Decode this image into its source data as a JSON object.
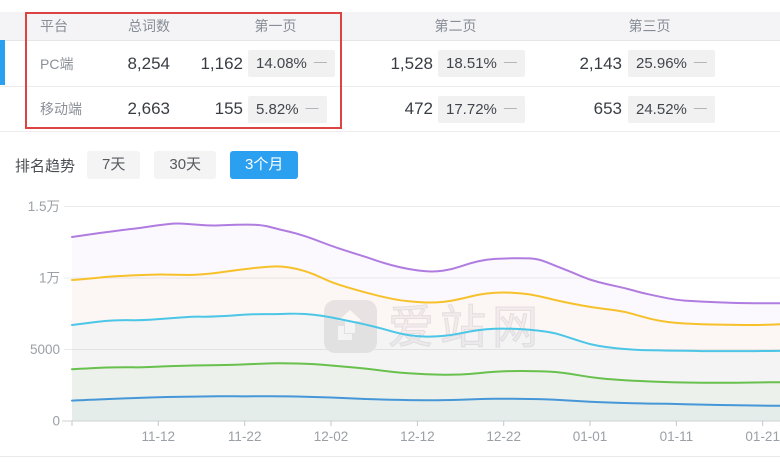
{
  "table": {
    "headers": {
      "platform": "平台",
      "total": "总词数",
      "page1": "第一页",
      "page2": "第二页",
      "page3": "第三页"
    },
    "rows": [
      {
        "platform": "PC端",
        "total": "8,254",
        "page1_count": "1,162",
        "page1_pct": "14.08%",
        "page1_trend": "—",
        "page2_count": "1,528",
        "page2_pct": "18.51%",
        "page2_trend": "—",
        "page3_count": "2,143",
        "page3_pct": "25.96%",
        "page3_trend": "—"
      },
      {
        "platform": "移动端",
        "total": "2,663",
        "page1_count": "155",
        "page1_pct": "5.82%",
        "page1_trend": "—",
        "page2_count": "472",
        "page2_pct": "17.72%",
        "page2_trend": "—",
        "page3_count": "653",
        "page3_pct": "24.52%",
        "page3_trend": "—"
      }
    ],
    "highlight_color": "#dc4343",
    "accent_color": "#2b9ff0"
  },
  "trend_section": {
    "title": "排名趋势",
    "tabs": [
      {
        "label": "7天",
        "active": false
      },
      {
        "label": "30天",
        "active": false
      },
      {
        "label": "3个月",
        "active": true
      }
    ],
    "active_color": "#2b9ff0"
  },
  "watermark": {
    "text": "爱站网"
  },
  "chart_data": {
    "type": "line",
    "title": "",
    "xlabel": "",
    "ylabel": "",
    "ylim": [
      0,
      15000
    ],
    "grid": true,
    "legend": "none",
    "y_ticks": [
      {
        "value": 0,
        "label": "0"
      },
      {
        "value": 5000,
        "label": "5000"
      },
      {
        "value": 10000,
        "label": "1万"
      },
      {
        "value": 15000,
        "label": "1.5万"
      }
    ],
    "x_tick_indices": [
      5,
      10,
      15,
      20,
      25,
      30,
      35,
      40
    ],
    "x_tick_labels": [
      "11-12",
      "11-22",
      "12-02",
      "12-12",
      "12-22",
      "01-01",
      "01-11",
      "01-21"
    ],
    "x_dates": [
      "11-02",
      "11-04",
      "11-06",
      "11-08",
      "11-10",
      "11-12",
      "11-14",
      "11-16",
      "11-18",
      "11-20",
      "11-22",
      "11-24",
      "11-26",
      "11-28",
      "11-30",
      "12-02",
      "12-04",
      "12-06",
      "12-08",
      "12-10",
      "12-12",
      "12-14",
      "12-16",
      "12-18",
      "12-20",
      "12-22",
      "12-24",
      "12-26",
      "12-28",
      "12-30",
      "01-01",
      "01-03",
      "01-05",
      "01-07",
      "01-09",
      "01-11",
      "01-13",
      "01-15",
      "01-17",
      "01-19",
      "01-21",
      "01-23"
    ],
    "series": [
      {
        "name": "line-purple",
        "color": "#b07ce0",
        "values": [
          12870,
          13040,
          13210,
          13370,
          13500,
          13700,
          13830,
          13760,
          13650,
          13700,
          13740,
          13720,
          13400,
          13120,
          12720,
          12250,
          11850,
          11480,
          11060,
          10740,
          10520,
          10430,
          10600,
          11020,
          11300,
          11370,
          11390,
          11350,
          10850,
          10380,
          9860,
          9560,
          9300,
          8960,
          8700,
          8460,
          8380,
          8320,
          8270,
          8240,
          8230,
          8230
        ]
      },
      {
        "name": "line-yellow",
        "color": "#f6c12b",
        "values": [
          9860,
          9960,
          10080,
          10160,
          10200,
          10250,
          10230,
          10200,
          10300,
          10460,
          10620,
          10760,
          10840,
          10660,
          10290,
          9700,
          9330,
          8980,
          8680,
          8430,
          8310,
          8270,
          8390,
          8680,
          8950,
          9000,
          8950,
          8750,
          8450,
          8200,
          7970,
          7820,
          7650,
          7300,
          7000,
          6850,
          6790,
          6750,
          6730,
          6710,
          6720,
          6760
        ]
      },
      {
        "name": "line-cyan",
        "color": "#4cc6e6",
        "values": [
          6710,
          6860,
          7010,
          7060,
          7040,
          7120,
          7220,
          7300,
          7290,
          7360,
          7440,
          7480,
          7470,
          7520,
          7450,
          7250,
          7000,
          6750,
          6450,
          6100,
          5920,
          5890,
          6010,
          6260,
          6430,
          6470,
          6430,
          6330,
          6150,
          5750,
          5350,
          5150,
          5030,
          4960,
          4930,
          4915,
          4900,
          4880,
          4890,
          4885,
          4895,
          4900
        ]
      },
      {
        "name": "line-green",
        "color": "#68c04d",
        "values": [
          3620,
          3680,
          3740,
          3760,
          3750,
          3800,
          3850,
          3880,
          3900,
          3920,
          3960,
          4010,
          4040,
          4020,
          3980,
          3890,
          3780,
          3670,
          3520,
          3380,
          3300,
          3250,
          3230,
          3280,
          3400,
          3480,
          3500,
          3480,
          3440,
          3280,
          3060,
          2940,
          2850,
          2790,
          2740,
          2700,
          2680,
          2670,
          2670,
          2680,
          2700,
          2710
        ]
      },
      {
        "name": "line-blue",
        "color": "#4697d8",
        "values": [
          1430,
          1480,
          1530,
          1580,
          1620,
          1660,
          1690,
          1710,
          1720,
          1730,
          1720,
          1730,
          1730,
          1710,
          1680,
          1640,
          1590,
          1540,
          1500,
          1470,
          1460,
          1450,
          1470,
          1510,
          1550,
          1560,
          1550,
          1530,
          1490,
          1420,
          1350,
          1300,
          1260,
          1230,
          1210,
          1190,
          1160,
          1130,
          1110,
          1090,
          1075,
          1070
        ]
      }
    ]
  }
}
